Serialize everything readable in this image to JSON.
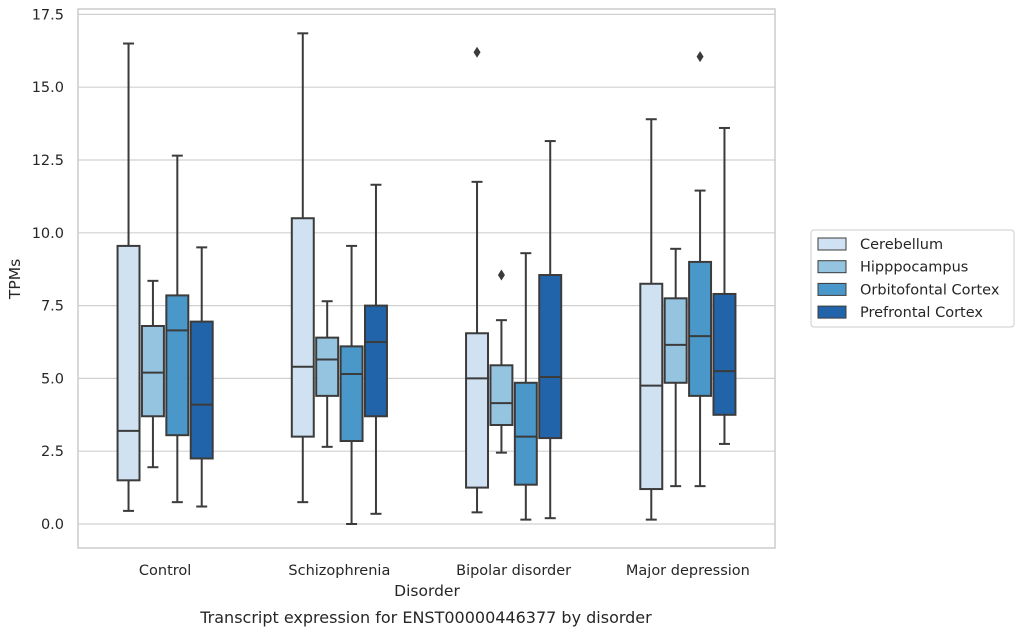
{
  "caption": "Transcript expression for ENST00000446377 by disorder",
  "colors": {
    "grid": "#d0d0d0",
    "frame": "#cccccc",
    "whisker": "#3b3b3b",
    "Cerebellum": "#d0e1f2",
    "Hipppocampus": "#94c4df",
    "Orbitofontal Cortex": "#4a98c9",
    "Prefrontal Cortex": "#2264a9"
  },
  "chart_data": {
    "type": "box",
    "xlabel": "Disorder",
    "ylabel": "TPMs",
    "ylim": [
      -0.8,
      17.7
    ],
    "yticks": [
      0.0,
      2.5,
      5.0,
      7.5,
      10.0,
      12.5,
      15.0,
      17.5
    ],
    "ytick_labels": [
      "0.0",
      "2.5",
      "5.0",
      "7.5",
      "10.0",
      "12.5",
      "15.0",
      "17.5"
    ],
    "grid": "horizontal",
    "legend_position": "right",
    "categories": [
      "Control",
      "Schizophrenia",
      "Bipolar disorder",
      "Major depression"
    ],
    "series": [
      {
        "name": "Cerebellum",
        "boxes": [
          {
            "whislo": 0.45,
            "q1": 1.5,
            "med": 3.2,
            "q3": 9.55,
            "whishi": 16.5,
            "fliers": []
          },
          {
            "whislo": 0.75,
            "q1": 3.0,
            "med": 5.4,
            "q3": 10.5,
            "whishi": 16.85,
            "fliers": []
          },
          {
            "whislo": 0.4,
            "q1": 1.25,
            "med": 5.0,
            "q3": 6.55,
            "whishi": 11.75,
            "fliers": [
              16.2
            ]
          },
          {
            "whislo": 0.15,
            "q1": 1.2,
            "med": 4.75,
            "q3": 8.25,
            "whishi": 13.9,
            "fliers": []
          }
        ]
      },
      {
        "name": "Hipppocampus",
        "boxes": [
          {
            "whislo": 1.95,
            "q1": 3.7,
            "med": 5.2,
            "q3": 6.8,
            "whishi": 8.35,
            "fliers": []
          },
          {
            "whislo": 2.65,
            "q1": 4.4,
            "med": 5.65,
            "q3": 6.4,
            "whishi": 7.65,
            "fliers": []
          },
          {
            "whislo": 2.45,
            "q1": 3.4,
            "med": 4.15,
            "q3": 5.45,
            "whishi": 7.0,
            "fliers": [
              8.55
            ]
          },
          {
            "whislo": 1.3,
            "q1": 4.85,
            "med": 6.15,
            "q3": 7.75,
            "whishi": 9.45,
            "fliers": []
          }
        ]
      },
      {
        "name": "Orbitofontal Cortex",
        "boxes": [
          {
            "whislo": 0.75,
            "q1": 3.05,
            "med": 6.65,
            "q3": 7.85,
            "whishi": 12.65,
            "fliers": []
          },
          {
            "whislo": 0.0,
            "q1": 2.85,
            "med": 5.15,
            "q3": 6.1,
            "whishi": 9.55,
            "fliers": []
          },
          {
            "whislo": 0.15,
            "q1": 1.35,
            "med": 3.0,
            "q3": 4.85,
            "whishi": 9.3,
            "fliers": []
          },
          {
            "whislo": 1.3,
            "q1": 4.4,
            "med": 6.45,
            "q3": 9.0,
            "whishi": 11.45,
            "fliers": [
              16.05
            ]
          }
        ]
      },
      {
        "name": "Prefrontal Cortex",
        "boxes": [
          {
            "whislo": 0.6,
            "q1": 2.25,
            "med": 4.1,
            "q3": 6.95,
            "whishi": 9.5,
            "fliers": []
          },
          {
            "whislo": 0.35,
            "q1": 3.7,
            "med": 6.25,
            "q3": 7.5,
            "whishi": 11.65,
            "fliers": []
          },
          {
            "whislo": 0.2,
            "q1": 2.95,
            "med": 5.05,
            "q3": 8.55,
            "whishi": 13.15,
            "fliers": []
          },
          {
            "whislo": 2.75,
            "q1": 3.75,
            "med": 5.25,
            "q3": 7.9,
            "whishi": 13.6,
            "fliers": []
          }
        ]
      }
    ]
  }
}
